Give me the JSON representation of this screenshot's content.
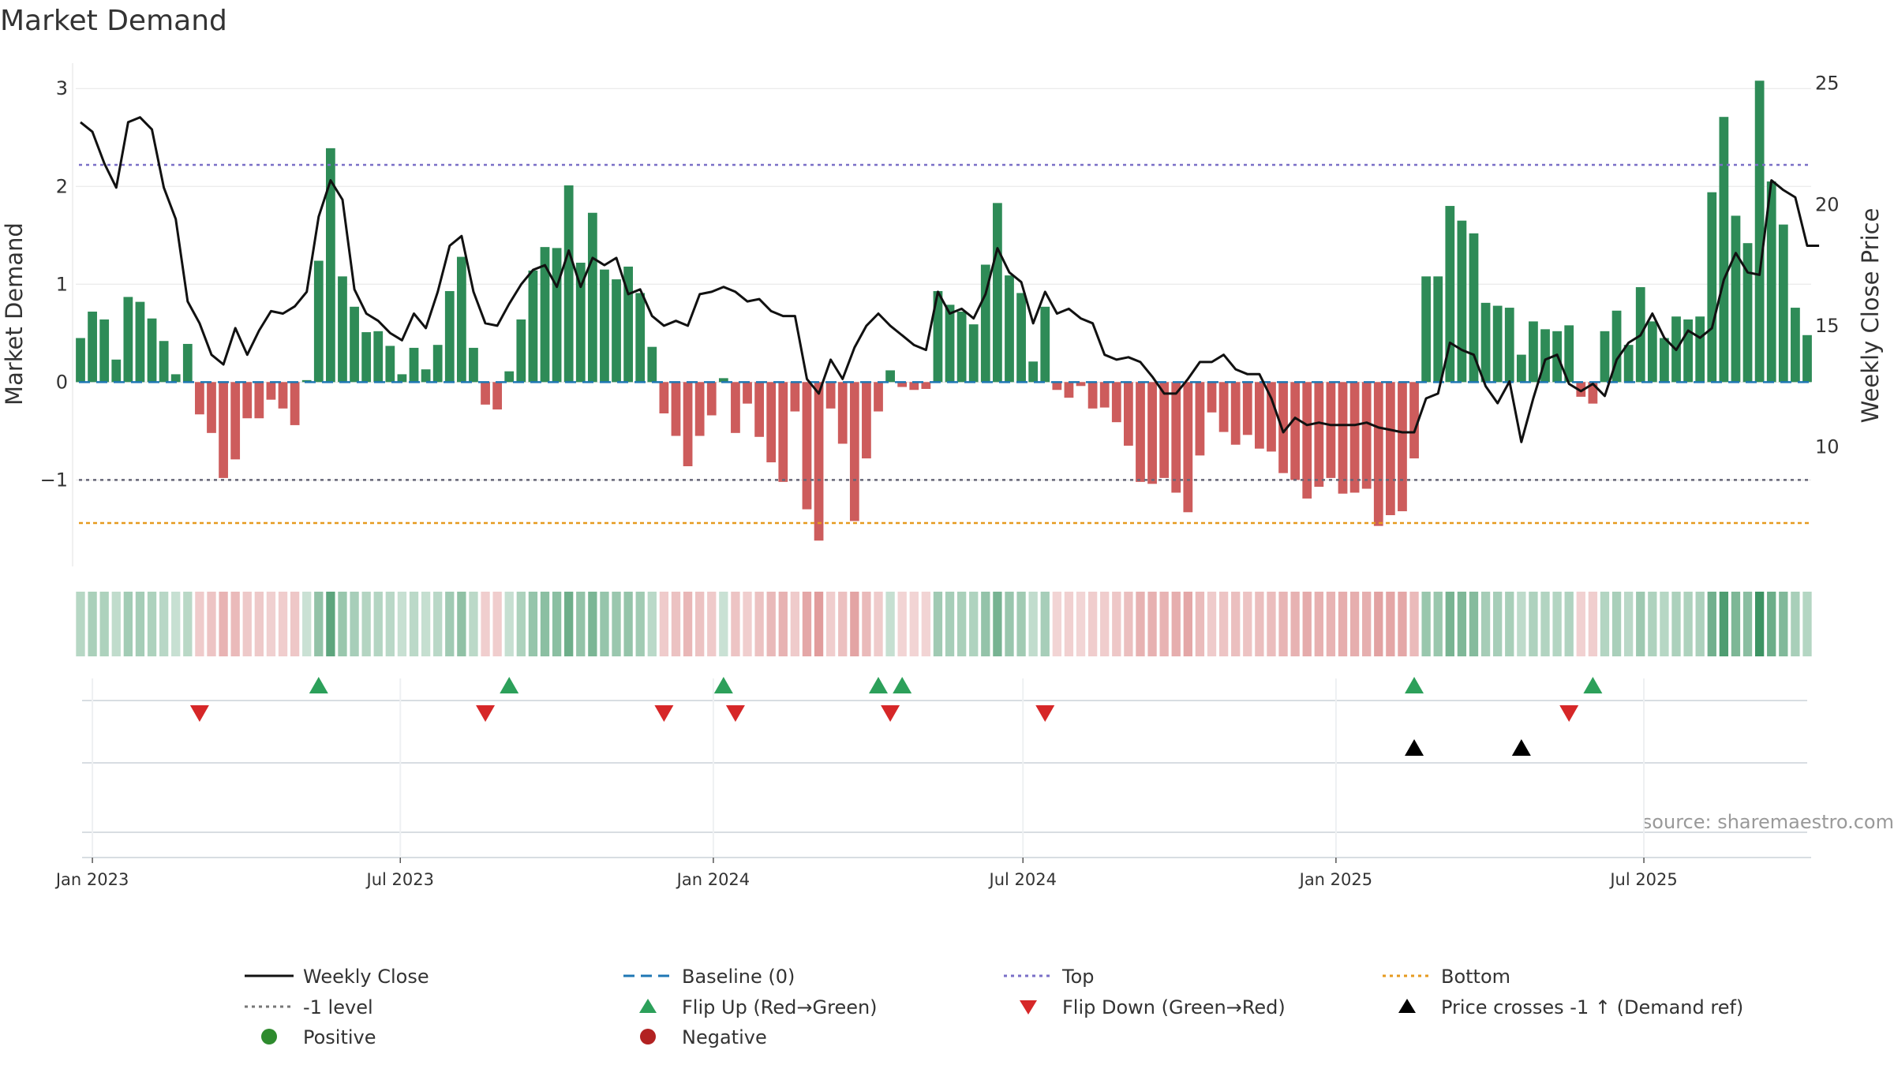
{
  "chart_data": {
    "type": "bar",
    "title": "Market Demand",
    "ylabel_left": "Market Demand",
    "ylabel_right": "Weekly Close Price",
    "ylim_left": [
      -1.9,
      3.3
    ],
    "yticks_left": [
      {
        "value": 3,
        "label": "3"
      },
      {
        "value": 2,
        "label": "2"
      },
      {
        "value": 1,
        "label": "1"
      },
      {
        "value": 0,
        "label": "0"
      },
      {
        "value": -1,
        "label": "−1"
      }
    ],
    "ylim_right": [
      5.0,
      26.0
    ],
    "yticks_right": [
      {
        "value": 25,
        "label": "25"
      },
      {
        "value": 20,
        "label": "20"
      },
      {
        "value": 15,
        "label": "15"
      },
      {
        "value": 10,
        "label": "10"
      }
    ],
    "reference_lines": {
      "baseline": 0,
      "top": 2.22,
      "minus_one": -1,
      "bottom": -1.44
    },
    "x_start": "2022-12-25",
    "x_step_days": 7,
    "x_ticks": [
      {
        "date": "2023-01-01",
        "label": "Jan 2023"
      },
      {
        "date": "2023-07-01",
        "label": "Jul 2023"
      },
      {
        "date": "2024-01-01",
        "label": "Jan 2024"
      },
      {
        "date": "2024-07-01",
        "label": "Jul 2024"
      },
      {
        "date": "2025-01-01",
        "label": "Jan 2025"
      },
      {
        "date": "2025-07-01",
        "label": "Jul 2025"
      }
    ],
    "demand": [
      0.45,
      0.72,
      0.64,
      0.23,
      0.87,
      0.82,
      0.65,
      0.42,
      0.08,
      0.39,
      -0.33,
      -0.52,
      -0.98,
      -0.79,
      -0.37,
      -0.37,
      -0.18,
      -0.27,
      -0.44,
      0.02,
      1.24,
      2.39,
      1.08,
      0.77,
      0.51,
      0.52,
      0.37,
      0.08,
      0.35,
      0.13,
      0.38,
      0.93,
      1.28,
      0.35,
      -0.23,
      -0.28,
      0.11,
      0.64,
      1.14,
      1.38,
      1.37,
      2.01,
      1.22,
      1.73,
      1.15,
      1.05,
      1.18,
      0.91,
      0.36,
      -0.32,
      -0.55,
      -0.86,
      -0.55,
      -0.34,
      0.04,
      -0.52,
      -0.22,
      -0.56,
      -0.82,
      -1.02,
      -0.3,
      -1.3,
      -1.62,
      -0.27,
      -0.63,
      -1.42,
      -0.78,
      -0.3,
      0.12,
      -0.05,
      -0.08,
      -0.07,
      0.93,
      0.79,
      0.72,
      0.59,
      1.2,
      1.83,
      1.09,
      0.91,
      0.21,
      0.77,
      -0.08,
      -0.16,
      -0.04,
      -0.27,
      -0.26,
      -0.41,
      -0.65,
      -1.02,
      -1.04,
      -0.98,
      -1.13,
      -1.33,
      -0.75,
      -0.31,
      -0.51,
      -0.64,
      -0.54,
      -0.68,
      -0.71,
      -0.93,
      -1.0,
      -1.19,
      -1.07,
      -0.98,
      -1.14,
      -1.13,
      -1.09,
      -1.47,
      -1.36,
      -1.32,
      -0.78,
      1.08,
      1.08,
      1.8,
      1.65,
      1.52,
      0.81,
      0.78,
      0.76,
      0.28,
      0.62,
      0.54,
      0.52,
      0.58,
      -0.15,
      -0.22,
      0.52,
      0.73,
      0.38,
      0.97,
      0.62,
      0.45,
      0.67,
      0.64,
      0.67,
      1.94,
      2.71,
      1.7,
      1.42,
      3.08,
      2.05,
      1.61,
      0.76,
      0.48
    ],
    "close": [
      23.4,
      23.0,
      21.7,
      20.7,
      23.4,
      23.6,
      23.1,
      20.7,
      19.4,
      16.0,
      15.1,
      13.8,
      13.4,
      14.9,
      13.8,
      14.8,
      15.6,
      15.5,
      15.8,
      16.4,
      19.5,
      21.0,
      20.2,
      16.5,
      15.5,
      15.2,
      14.7,
      14.4,
      15.5,
      14.9,
      16.4,
      18.3,
      18.7,
      16.4,
      15.1,
      15.0,
      15.9,
      16.7,
      17.3,
      17.5,
      16.6,
      18.1,
      16.6,
      17.8,
      17.5,
      17.8,
      16.3,
      16.5,
      15.4,
      15.0,
      15.2,
      15.0,
      16.3,
      16.4,
      16.6,
      16.4,
      16.0,
      16.1,
      15.6,
      15.4,
      15.4,
      12.8,
      12.2,
      13.6,
      12.8,
      14.1,
      15.0,
      15.5,
      15.0,
      14.6,
      14.2,
      14.0,
      16.4,
      15.5,
      15.7,
      15.3,
      16.3,
      18.2,
      17.2,
      16.8,
      15.1,
      16.4,
      15.5,
      15.7,
      15.3,
      15.1,
      13.8,
      13.6,
      13.7,
      13.5,
      12.9,
      12.2,
      12.2,
      12.8,
      13.5,
      13.5,
      13.8,
      13.2,
      13.0,
      13.0,
      12.0,
      10.6,
      11.2,
      10.9,
      11.0,
      10.9,
      10.9,
      10.9,
      11.0,
      10.8,
      10.7,
      10.6,
      10.6,
      12.0,
      12.2,
      14.3,
      14.0,
      13.8,
      12.5,
      11.8,
      12.7,
      10.2,
      12.0,
      13.6,
      13.8,
      12.6,
      12.3,
      12.6,
      12.1,
      13.6,
      14.3,
      14.6,
      15.5,
      14.5,
      14.0,
      14.8,
      14.5,
      14.9,
      16.9,
      18.0,
      17.2,
      17.1,
      21.0,
      20.6,
      20.3,
      18.3,
      18.3
    ],
    "flip_up_idx": [
      20,
      36,
      54,
      67,
      69,
      112,
      127
    ],
    "flip_down_idx": [
      10,
      34,
      49,
      55,
      68,
      81,
      125
    ],
    "price_cross_idx": [
      112,
      121
    ],
    "source": "source: sharemaestro.com",
    "legend_position": "bottom",
    "legend": [
      {
        "label": "Weekly Close",
        "kind": "line-solid",
        "color": "#111111"
      },
      {
        "label": "Baseline (0)",
        "kind": "line-dash",
        "color": "#1f77b4"
      },
      {
        "label": "Top",
        "kind": "line-dot",
        "color": "#7a6fc7"
      },
      {
        "label": "Bottom",
        "kind": "line-dot",
        "color": "#e69a1f"
      },
      {
        "label": "-1 level",
        "kind": "line-dot",
        "color": "#777777"
      },
      {
        "label": "Flip Up (Red→Green)",
        "kind": "tri-up",
        "color": "#2ca05a"
      },
      {
        "label": "Flip Down (Green→Red)",
        "kind": "tri-down",
        "color": "#d62728"
      },
      {
        "label": "Price crosses -1 ↑ (Demand ref)",
        "kind": "tri-up",
        "color": "#000000"
      },
      {
        "label": "Positive",
        "kind": "dot",
        "color": "#2e8b2e"
      },
      {
        "label": "Negative",
        "kind": "dot",
        "color": "#b22222"
      }
    ],
    "colors": {
      "positive_bar": "#2e8b57",
      "negative_bar": "#cd5c5c",
      "close_line": "#111111",
      "baseline": "#1f77b4",
      "top": "#7a6fc7",
      "bottom": "#e69a1f",
      "minus_one": "#666677",
      "flip_up": "#2ca05a",
      "flip_down": "#d62728",
      "price_cross": "#000000",
      "grid": "#e5e5e5",
      "strip_positive": "#2e8b57",
      "strip_negative": "#cd5c5c"
    }
  }
}
